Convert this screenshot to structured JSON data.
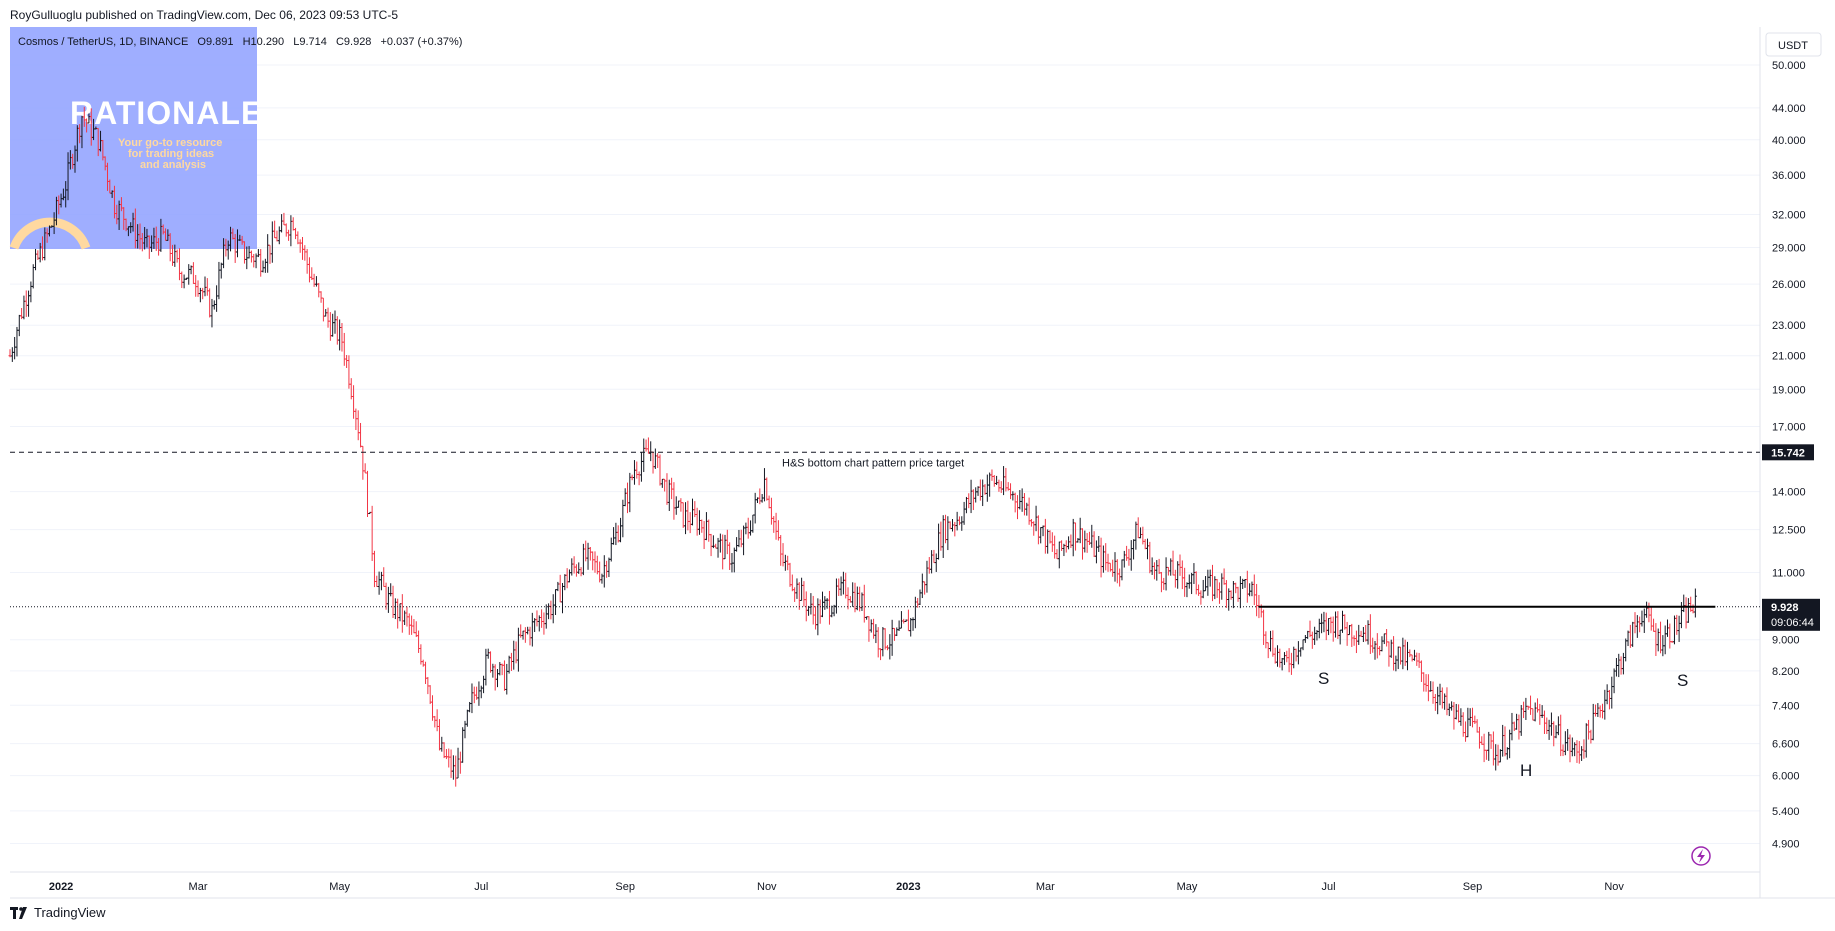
{
  "header": {
    "publisher": "RoyGulluoglu published on TradingView.com, Dec 06, 2023 09:53 UTC-5",
    "symbol": "Cosmos / TetherUS, 1D, BINANCE",
    "open": "O9.891",
    "high": "H10.290",
    "low": "L9.714",
    "close": "C9.928",
    "change": "+0.037 (+0.37%)"
  },
  "watermark": {
    "title": "RATIONALE",
    "tagline_1": "Your go-to resource",
    "tagline_2": "for trading ideas",
    "tagline_3": "and analysis"
  },
  "price_axis": {
    "currency": "USDT",
    "ticks": [
      "50.000",
      "44.000",
      "40.000",
      "36.000",
      "32.000",
      "29.000",
      "26.000",
      "23.000",
      "21.000",
      "19.000",
      "17.000",
      "14.000",
      "12.500",
      "11.000",
      "9.000",
      "8.200",
      "7.400",
      "6.600",
      "6.000",
      "5.400",
      "4.900"
    ],
    "target_label": "15.742",
    "last_price_label": "9.928",
    "countdown_label": "09:06:44"
  },
  "time_axis": {
    "labels": [
      "2022",
      "Mar",
      "May",
      "Jul",
      "Sep",
      "Nov",
      "2023",
      "Mar",
      "May",
      "Jul",
      "Sep",
      "Nov"
    ]
  },
  "annotations": {
    "target_text": "H&S bottom chart pattern price target",
    "left_shoulder": "S",
    "head": "H",
    "right_shoulder": "S"
  },
  "footer": {
    "brand": "TradingView"
  },
  "colors": {
    "up": "#131722",
    "down": "#f23645",
    "watermark_box": "#8ea0ff",
    "grid": "#f0f3fa",
    "arc": "#ffd9a0",
    "accent": "#9c27b0"
  },
  "chart_data": {
    "type": "ohlc",
    "scale": "log",
    "title": "Cosmos / TetherUS, 1D, BINANCE",
    "ylim": [
      4.5,
      56
    ],
    "x_range": [
      "2021-12-10",
      "2023-12-08"
    ],
    "target_level": 15.742,
    "neckline": {
      "from": "2023-06-01",
      "to": "2023-12-06",
      "value": 9.93
    },
    "last_price": 9.928,
    "series": [
      {
        "name": "Cosmos / TetherUS",
        "points": [
          [
            "2021-12-10",
            21.0
          ],
          [
            "2021-12-20",
            27.0
          ],
          [
            "2021-12-28",
            31.0
          ],
          [
            "2022-01-03",
            35.0
          ],
          [
            "2022-01-10",
            43.0
          ],
          [
            "2022-01-17",
            40.0
          ],
          [
            "2022-01-24",
            33.0
          ],
          [
            "2022-01-31",
            31.0
          ],
          [
            "2022-02-07",
            29.0
          ],
          [
            "2022-02-14",
            30.0
          ],
          [
            "2022-02-21",
            27.0
          ],
          [
            "2022-02-28",
            26.5
          ],
          [
            "2022-03-07",
            24.0
          ],
          [
            "2022-03-14",
            30.0
          ],
          [
            "2022-03-21",
            28.5
          ],
          [
            "2022-03-28",
            28.0
          ],
          [
            "2022-04-04",
            30.0
          ],
          [
            "2022-04-11",
            31.5
          ],
          [
            "2022-04-18",
            27.0
          ],
          [
            "2022-04-25",
            23.5
          ],
          [
            "2022-05-02",
            22.0
          ],
          [
            "2022-05-09",
            17.0
          ],
          [
            "2022-05-16",
            11.0
          ],
          [
            "2022-05-23",
            10.0
          ],
          [
            "2022-05-30",
            9.5
          ],
          [
            "2022-06-06",
            8.5
          ],
          [
            "2022-06-13",
            6.5
          ],
          [
            "2022-06-20",
            6.0
          ],
          [
            "2022-06-27",
            7.5
          ],
          [
            "2022-07-04",
            8.5
          ],
          [
            "2022-07-11",
            8.0
          ],
          [
            "2022-07-18",
            9.0
          ],
          [
            "2022-07-25",
            9.5
          ],
          [
            "2022-08-01",
            10.0
          ],
          [
            "2022-08-08",
            11.0
          ],
          [
            "2022-08-15",
            11.5
          ],
          [
            "2022-08-22",
            11.0
          ],
          [
            "2022-08-29",
            12.5
          ],
          [
            "2022-09-05",
            15.0
          ],
          [
            "2022-09-12",
            15.8
          ],
          [
            "2022-09-19",
            14.0
          ],
          [
            "2022-09-26",
            13.0
          ],
          [
            "2022-10-03",
            12.8
          ],
          [
            "2022-10-10",
            12.0
          ],
          [
            "2022-10-17",
            11.5
          ],
          [
            "2022-10-24",
            12.5
          ],
          [
            "2022-10-31",
            14.5
          ],
          [
            "2022-11-07",
            11.5
          ],
          [
            "2022-11-14",
            10.5
          ],
          [
            "2022-11-21",
            9.7
          ],
          [
            "2022-11-28",
            10.0
          ],
          [
            "2022-12-05",
            10.5
          ],
          [
            "2022-12-12",
            10.0
          ],
          [
            "2022-12-19",
            9.0
          ],
          [
            "2022-12-26",
            9.0
          ],
          [
            "2023-01-02",
            9.5
          ],
          [
            "2023-01-09",
            11.0
          ],
          [
            "2023-01-16",
            12.5
          ],
          [
            "2023-01-23",
            13.0
          ],
          [
            "2023-01-30",
            14.0
          ],
          [
            "2023-02-06",
            14.5
          ],
          [
            "2023-02-13",
            14.0
          ],
          [
            "2023-02-20",
            13.5
          ],
          [
            "2023-02-27",
            12.5
          ],
          [
            "2023-03-06",
            11.5
          ],
          [
            "2023-03-13",
            12.5
          ],
          [
            "2023-03-20",
            12.0
          ],
          [
            "2023-03-27",
            11.3
          ],
          [
            "2023-04-03",
            11.2
          ],
          [
            "2023-04-10",
            12.5
          ],
          [
            "2023-04-17",
            11.0
          ],
          [
            "2023-04-24",
            11.0
          ],
          [
            "2023-05-01",
            10.8
          ],
          [
            "2023-05-08",
            10.5
          ],
          [
            "2023-05-15",
            10.6
          ],
          [
            "2023-05-22",
            10.4
          ],
          [
            "2023-05-29",
            10.5
          ],
          [
            "2023-06-05",
            9.0
          ],
          [
            "2023-06-12",
            8.3
          ],
          [
            "2023-06-19",
            9.0
          ],
          [
            "2023-06-26",
            9.2
          ],
          [
            "2023-07-03",
            9.5
          ],
          [
            "2023-07-10",
            9.3
          ],
          [
            "2023-07-17",
            9.2
          ],
          [
            "2023-07-24",
            8.9
          ],
          [
            "2023-07-31",
            8.6
          ],
          [
            "2023-08-07",
            8.4
          ],
          [
            "2023-08-14",
            7.8
          ],
          [
            "2023-08-21",
            7.3
          ],
          [
            "2023-08-28",
            7.0
          ],
          [
            "2023-09-04",
            6.8
          ],
          [
            "2023-09-11",
            6.4
          ],
          [
            "2023-09-18",
            6.8
          ],
          [
            "2023-09-25",
            7.3
          ],
          [
            "2023-10-02",
            7.1
          ],
          [
            "2023-10-09",
            6.7
          ],
          [
            "2023-10-16",
            6.4
          ],
          [
            "2023-10-23",
            7.0
          ],
          [
            "2023-10-30",
            7.8
          ],
          [
            "2023-11-06",
            8.8
          ],
          [
            "2023-11-13",
            9.8
          ],
          [
            "2023-11-20",
            9.0
          ],
          [
            "2023-11-27",
            9.3
          ],
          [
            "2023-12-04",
            9.9
          ],
          [
            "2023-12-06",
            9.928
          ]
        ]
      }
    ]
  }
}
